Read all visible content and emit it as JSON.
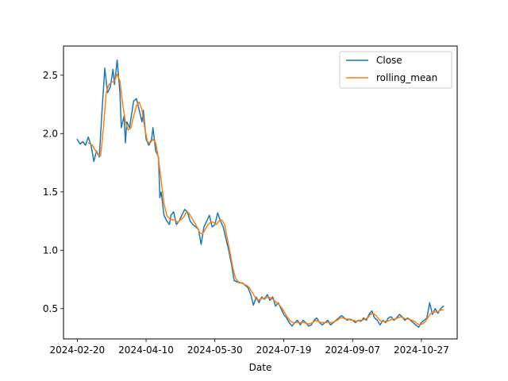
{
  "chart_data": {
    "type": "line",
    "title": "",
    "xlabel": "Date",
    "ylabel": "",
    "x_ticks": [
      "2024-02-20",
      "2024-04-10",
      "2024-05-30",
      "2024-07-19",
      "2024-09-07",
      "2024-10-27"
    ],
    "y_ticks": [
      "0.5",
      "1.0",
      "1.5",
      "2.0",
      "2.5"
    ],
    "xlim": [
      "2024-02-10",
      "2024-11-22"
    ],
    "ylim": [
      0.24,
      2.75
    ],
    "grid": false,
    "legend_position": "upper right",
    "series": [
      {
        "name": "Close",
        "color": "#1f77b4",
        "points": [
          [
            "2024-02-20",
            1.95
          ],
          [
            "2024-02-22",
            1.91
          ],
          [
            "2024-02-24",
            1.93
          ],
          [
            "2024-02-26",
            1.9
          ],
          [
            "2024-02-28",
            1.97
          ],
          [
            "2024-03-01",
            1.9
          ],
          [
            "2024-03-03",
            1.76
          ],
          [
            "2024-03-05",
            1.85
          ],
          [
            "2024-03-07",
            1.8
          ],
          [
            "2024-03-09",
            2.2
          ],
          [
            "2024-03-11",
            2.56
          ],
          [
            "2024-03-13",
            2.35
          ],
          [
            "2024-03-15",
            2.4
          ],
          [
            "2024-03-17",
            2.55
          ],
          [
            "2024-03-18",
            2.42
          ],
          [
            "2024-03-20",
            2.63
          ],
          [
            "2024-03-22",
            2.35
          ],
          [
            "2024-03-23",
            2.05
          ],
          [
            "2024-03-25",
            2.15
          ],
          [
            "2024-03-26",
            1.92
          ],
          [
            "2024-03-27",
            2.1
          ],
          [
            "2024-03-29",
            2.05
          ],
          [
            "2024-04-01",
            2.28
          ],
          [
            "2024-04-03",
            2.3
          ],
          [
            "2024-04-05",
            2.2
          ],
          [
            "2024-04-07",
            2.1
          ],
          [
            "2024-04-08",
            2.2
          ],
          [
            "2024-04-10",
            1.95
          ],
          [
            "2024-04-12",
            1.9
          ],
          [
            "2024-04-14",
            1.95
          ],
          [
            "2024-04-15",
            2.05
          ],
          [
            "2024-04-17",
            1.85
          ],
          [
            "2024-04-19",
            1.8
          ],
          [
            "2024-04-20",
            1.45
          ],
          [
            "2024-04-21",
            1.5
          ],
          [
            "2024-04-23",
            1.3
          ],
          [
            "2024-04-25",
            1.25
          ],
          [
            "2024-04-27",
            1.22
          ],
          [
            "2024-04-28",
            1.3
          ],
          [
            "2024-04-30",
            1.33
          ],
          [
            "2024-05-02",
            1.22
          ],
          [
            "2024-05-04",
            1.25
          ],
          [
            "2024-05-06",
            1.3
          ],
          [
            "2024-05-08",
            1.35
          ],
          [
            "2024-05-10",
            1.33
          ],
          [
            "2024-05-12",
            1.25
          ],
          [
            "2024-05-14",
            1.22
          ],
          [
            "2024-05-16",
            1.2
          ],
          [
            "2024-05-18",
            1.18
          ],
          [
            "2024-05-20",
            1.05
          ],
          [
            "2024-05-22",
            1.2
          ],
          [
            "2024-05-24",
            1.25
          ],
          [
            "2024-05-26",
            1.3
          ],
          [
            "2024-05-28",
            1.2
          ],
          [
            "2024-05-30",
            1.22
          ],
          [
            "2024-06-01",
            1.32
          ],
          [
            "2024-06-03",
            1.25
          ],
          [
            "2024-06-05",
            1.2
          ],
          [
            "2024-06-07",
            1.1
          ],
          [
            "2024-06-09",
            1.0
          ],
          [
            "2024-06-11",
            0.88
          ],
          [
            "2024-06-13",
            0.74
          ],
          [
            "2024-06-15",
            0.73
          ],
          [
            "2024-06-17",
            0.72
          ],
          [
            "2024-06-19",
            0.72
          ],
          [
            "2024-06-21",
            0.7
          ],
          [
            "2024-06-23",
            0.68
          ],
          [
            "2024-06-25",
            0.62
          ],
          [
            "2024-06-27",
            0.53
          ],
          [
            "2024-06-29",
            0.6
          ],
          [
            "2024-07-01",
            0.55
          ],
          [
            "2024-07-03",
            0.6
          ],
          [
            "2024-07-05",
            0.58
          ],
          [
            "2024-07-07",
            0.62
          ],
          [
            "2024-07-09",
            0.57
          ],
          [
            "2024-07-11",
            0.6
          ],
          [
            "2024-07-13",
            0.52
          ],
          [
            "2024-07-15",
            0.55
          ],
          [
            "2024-07-17",
            0.5
          ],
          [
            "2024-07-19",
            0.45
          ],
          [
            "2024-07-21",
            0.42
          ],
          [
            "2024-07-23",
            0.38
          ],
          [
            "2024-07-25",
            0.35
          ],
          [
            "2024-07-27",
            0.38
          ],
          [
            "2024-07-29",
            0.4
          ],
          [
            "2024-07-31",
            0.36
          ],
          [
            "2024-08-02",
            0.4
          ],
          [
            "2024-08-04",
            0.38
          ],
          [
            "2024-08-06",
            0.35
          ],
          [
            "2024-08-08",
            0.36
          ],
          [
            "2024-08-10",
            0.4
          ],
          [
            "2024-08-12",
            0.42
          ],
          [
            "2024-08-14",
            0.38
          ],
          [
            "2024-08-16",
            0.36
          ],
          [
            "2024-08-18",
            0.38
          ],
          [
            "2024-08-20",
            0.4
          ],
          [
            "2024-08-22",
            0.36
          ],
          [
            "2024-08-24",
            0.38
          ],
          [
            "2024-08-26",
            0.4
          ],
          [
            "2024-08-28",
            0.42
          ],
          [
            "2024-08-30",
            0.44
          ],
          [
            "2024-09-01",
            0.42
          ],
          [
            "2024-09-03",
            0.4
          ],
          [
            "2024-09-05",
            0.41
          ],
          [
            "2024-09-07",
            0.4
          ],
          [
            "2024-09-09",
            0.38
          ],
          [
            "2024-09-11",
            0.4
          ],
          [
            "2024-09-13",
            0.39
          ],
          [
            "2024-09-15",
            0.42
          ],
          [
            "2024-09-17",
            0.4
          ],
          [
            "2024-09-19",
            0.45
          ],
          [
            "2024-09-21",
            0.48
          ],
          [
            "2024-09-23",
            0.42
          ],
          [
            "2024-09-25",
            0.4
          ],
          [
            "2024-09-27",
            0.36
          ],
          [
            "2024-09-29",
            0.4
          ],
          [
            "2024-10-01",
            0.38
          ],
          [
            "2024-10-03",
            0.42
          ],
          [
            "2024-10-05",
            0.43
          ],
          [
            "2024-10-07",
            0.4
          ],
          [
            "2024-10-09",
            0.42
          ],
          [
            "2024-10-11",
            0.45
          ],
          [
            "2024-10-13",
            0.43
          ],
          [
            "2024-10-15",
            0.4
          ],
          [
            "2024-10-17",
            0.42
          ],
          [
            "2024-10-19",
            0.4
          ],
          [
            "2024-10-21",
            0.38
          ],
          [
            "2024-10-23",
            0.36
          ],
          [
            "2024-10-25",
            0.34
          ],
          [
            "2024-10-27",
            0.38
          ],
          [
            "2024-10-29",
            0.4
          ],
          [
            "2024-10-31",
            0.42
          ],
          [
            "2024-11-02",
            0.55
          ],
          [
            "2024-11-04",
            0.45
          ],
          [
            "2024-11-06",
            0.5
          ],
          [
            "2024-11-08",
            0.46
          ],
          [
            "2024-11-10",
            0.5
          ],
          [
            "2024-11-12",
            0.52
          ]
        ]
      },
      {
        "name": "rolling_mean",
        "color": "#ff7f0e",
        "points": [
          [
            "2024-02-28",
            1.92
          ],
          [
            "2024-03-02",
            1.9
          ],
          [
            "2024-03-04",
            1.86
          ],
          [
            "2024-03-06",
            1.82
          ],
          [
            "2024-03-08",
            1.81
          ],
          [
            "2024-03-10",
            2.05
          ],
          [
            "2024-03-12",
            2.35
          ],
          [
            "2024-03-14",
            2.42
          ],
          [
            "2024-03-16",
            2.44
          ],
          [
            "2024-03-18",
            2.45
          ],
          [
            "2024-03-20",
            2.51
          ],
          [
            "2024-03-22",
            2.45
          ],
          [
            "2024-03-24",
            2.25
          ],
          [
            "2024-03-26",
            2.1
          ],
          [
            "2024-03-28",
            2.03
          ],
          [
            "2024-03-30",
            2.05
          ],
          [
            "2024-04-01",
            2.15
          ],
          [
            "2024-04-03",
            2.24
          ],
          [
            "2024-04-05",
            2.27
          ],
          [
            "2024-04-07",
            2.2
          ],
          [
            "2024-04-09",
            2.05
          ],
          [
            "2024-04-11",
            1.93
          ],
          [
            "2024-04-13",
            1.92
          ],
          [
            "2024-04-15",
            1.95
          ],
          [
            "2024-04-17",
            1.92
          ],
          [
            "2024-04-19",
            1.78
          ],
          [
            "2024-04-21",
            1.6
          ],
          [
            "2024-04-23",
            1.4
          ],
          [
            "2024-04-25",
            1.3
          ],
          [
            "2024-04-27",
            1.27
          ],
          [
            "2024-04-29",
            1.26
          ],
          [
            "2024-05-01",
            1.26
          ],
          [
            "2024-05-03",
            1.24
          ],
          [
            "2024-05-05",
            1.26
          ],
          [
            "2024-05-07",
            1.28
          ],
          [
            "2024-05-09",
            1.32
          ],
          [
            "2024-05-11",
            1.32
          ],
          [
            "2024-05-13",
            1.28
          ],
          [
            "2024-05-15",
            1.24
          ],
          [
            "2024-05-17",
            1.2
          ],
          [
            "2024-05-19",
            1.15
          ],
          [
            "2024-05-21",
            1.14
          ],
          [
            "2024-05-23",
            1.18
          ],
          [
            "2024-05-25",
            1.22
          ],
          [
            "2024-05-27",
            1.24
          ],
          [
            "2024-05-29",
            1.24
          ],
          [
            "2024-05-31",
            1.22
          ],
          [
            "2024-06-02",
            1.25
          ],
          [
            "2024-06-04",
            1.26
          ],
          [
            "2024-06-06",
            1.22
          ],
          [
            "2024-06-08",
            1.1
          ],
          [
            "2024-06-10",
            0.98
          ],
          [
            "2024-06-12",
            0.85
          ],
          [
            "2024-06-14",
            0.76
          ],
          [
            "2024-06-16",
            0.73
          ],
          [
            "2024-06-18",
            0.72
          ],
          [
            "2024-06-20",
            0.71
          ],
          [
            "2024-06-22",
            0.7
          ],
          [
            "2024-06-24",
            0.68
          ],
          [
            "2024-06-26",
            0.64
          ],
          [
            "2024-06-28",
            0.6
          ],
          [
            "2024-06-30",
            0.57
          ],
          [
            "2024-07-02",
            0.58
          ],
          [
            "2024-07-04",
            0.59
          ],
          [
            "2024-07-06",
            0.59
          ],
          [
            "2024-07-08",
            0.6
          ],
          [
            "2024-07-10",
            0.59
          ],
          [
            "2024-07-12",
            0.57
          ],
          [
            "2024-07-14",
            0.55
          ],
          [
            "2024-07-16",
            0.53
          ],
          [
            "2024-07-18",
            0.5
          ],
          [
            "2024-07-20",
            0.46
          ],
          [
            "2024-07-22",
            0.42
          ],
          [
            "2024-07-24",
            0.39
          ],
          [
            "2024-07-26",
            0.38
          ],
          [
            "2024-07-28",
            0.38
          ],
          [
            "2024-07-30",
            0.38
          ],
          [
            "2024-08-01",
            0.38
          ],
          [
            "2024-08-03",
            0.38
          ],
          [
            "2024-08-05",
            0.37
          ],
          [
            "2024-08-07",
            0.37
          ],
          [
            "2024-08-09",
            0.38
          ],
          [
            "2024-08-11",
            0.4
          ],
          [
            "2024-08-13",
            0.39
          ],
          [
            "2024-08-15",
            0.38
          ],
          [
            "2024-08-17",
            0.38
          ],
          [
            "2024-08-19",
            0.38
          ],
          [
            "2024-08-21",
            0.38
          ],
          [
            "2024-08-23",
            0.38
          ],
          [
            "2024-08-25",
            0.39
          ],
          [
            "2024-08-27",
            0.4
          ],
          [
            "2024-08-29",
            0.42
          ],
          [
            "2024-08-31",
            0.42
          ],
          [
            "2024-09-02",
            0.41
          ],
          [
            "2024-09-04",
            0.41
          ],
          [
            "2024-09-06",
            0.4
          ],
          [
            "2024-09-08",
            0.4
          ],
          [
            "2024-09-10",
            0.39
          ],
          [
            "2024-09-12",
            0.4
          ],
          [
            "2024-09-14",
            0.4
          ],
          [
            "2024-09-16",
            0.41
          ],
          [
            "2024-09-18",
            0.42
          ],
          [
            "2024-09-20",
            0.45
          ],
          [
            "2024-09-22",
            0.46
          ],
          [
            "2024-09-24",
            0.44
          ],
          [
            "2024-09-26",
            0.41
          ],
          [
            "2024-09-28",
            0.39
          ],
          [
            "2024-09-30",
            0.39
          ],
          [
            "2024-10-02",
            0.39
          ],
          [
            "2024-10-04",
            0.4
          ],
          [
            "2024-10-06",
            0.41
          ],
          [
            "2024-10-08",
            0.41
          ],
          [
            "2024-10-10",
            0.42
          ],
          [
            "2024-10-12",
            0.43
          ],
          [
            "2024-10-14",
            0.42
          ],
          [
            "2024-10-16",
            0.41
          ],
          [
            "2024-10-18",
            0.41
          ],
          [
            "2024-10-20",
            0.4
          ],
          [
            "2024-10-22",
            0.39
          ],
          [
            "2024-10-24",
            0.37
          ],
          [
            "2024-10-26",
            0.36
          ],
          [
            "2024-10-28",
            0.37
          ],
          [
            "2024-10-30",
            0.39
          ],
          [
            "2024-11-01",
            0.43
          ],
          [
            "2024-11-03",
            0.46
          ],
          [
            "2024-11-05",
            0.47
          ],
          [
            "2024-11-07",
            0.47
          ],
          [
            "2024-11-09",
            0.48
          ],
          [
            "2024-11-11",
            0.49
          ],
          [
            "2024-11-12",
            0.49
          ]
        ]
      }
    ]
  }
}
